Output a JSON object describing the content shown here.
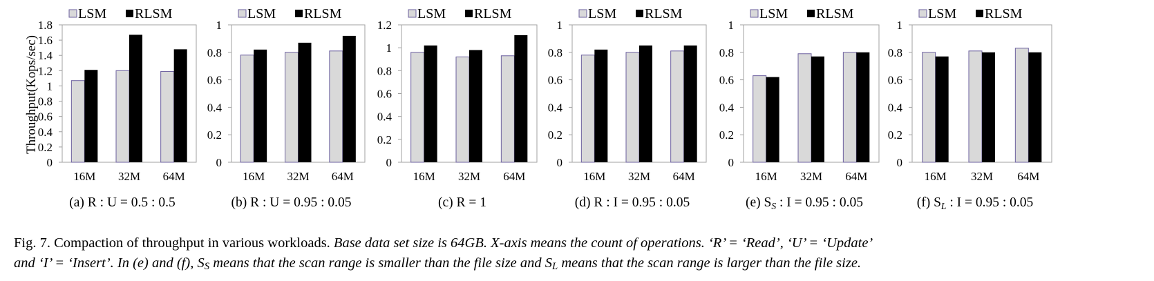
{
  "colors": {
    "lsm": "#d9d9d9",
    "rlsm": "#000000",
    "lsm_edge": "#6b5f9e",
    "axis": "#a0a0a0"
  },
  "legend": {
    "lsm": "LSM",
    "rlsm": "RLSM"
  },
  "y_axis_title": "Throughput(Kops/sec)",
  "chart_data": [
    {
      "type": "bar",
      "categories": [
        "16M",
        "32M",
        "64M"
      ],
      "series": [
        {
          "name": "LSM",
          "values": [
            1.07,
            1.2,
            1.19
          ]
        },
        {
          "name": "RLSM",
          "values": [
            1.21,
            1.67,
            1.48
          ]
        }
      ],
      "ylim": [
        0,
        1.8
      ],
      "yticks": [
        "0",
        "0.2",
        "0.4",
        "0.6",
        "0.8",
        "1",
        "1.2",
        "1.4",
        "1.6",
        "1.8"
      ],
      "ylabel": "Throughput(Kops/sec)",
      "caption": {
        "prefix": "(a) R : U = 0.5 : 0.5",
        "sub": "",
        "suffix": ""
      }
    },
    {
      "type": "bar",
      "categories": [
        "16M",
        "32M",
        "64M"
      ],
      "series": [
        {
          "name": "LSM",
          "values": [
            0.78,
            0.8,
            0.81
          ]
        },
        {
          "name": "RLSM",
          "values": [
            0.82,
            0.87,
            0.92
          ]
        }
      ],
      "ylim": [
        0,
        1
      ],
      "yticks": [
        "0",
        "0.2",
        "0.4",
        "0.6",
        "0.8",
        "1"
      ],
      "caption": {
        "prefix": "(b) R : U = 0.95 : 0.05",
        "sub": "",
        "suffix": ""
      }
    },
    {
      "type": "bar",
      "categories": [
        "16M",
        "32M",
        "64M"
      ],
      "series": [
        {
          "name": "LSM",
          "values": [
            0.96,
            0.92,
            0.93
          ]
        },
        {
          "name": "RLSM",
          "values": [
            1.02,
            0.98,
            1.11
          ]
        }
      ],
      "ylim": [
        0,
        1.2
      ],
      "yticks": [
        "0",
        "0.2",
        "0.4",
        "0.6",
        "0.8",
        "1",
        "1.2"
      ],
      "caption": {
        "prefix": "(c) R = 1",
        "sub": "",
        "suffix": ""
      }
    },
    {
      "type": "bar",
      "categories": [
        "16M",
        "32M",
        "64M"
      ],
      "series": [
        {
          "name": "LSM",
          "values": [
            0.78,
            0.8,
            0.81
          ]
        },
        {
          "name": "RLSM",
          "values": [
            0.82,
            0.85,
            0.85
          ]
        }
      ],
      "ylim": [
        0,
        1
      ],
      "yticks": [
        "0",
        "0.2",
        "0.4",
        "0.6",
        "0.8",
        "1"
      ],
      "caption": {
        "prefix": "(d) R : I = 0.95 : 0.05",
        "sub": "",
        "suffix": ""
      }
    },
    {
      "type": "bar",
      "categories": [
        "16M",
        "32M",
        "64M"
      ],
      "series": [
        {
          "name": "LSM",
          "values": [
            0.63,
            0.79,
            0.8
          ]
        },
        {
          "name": "RLSM",
          "values": [
            0.62,
            0.77,
            0.8
          ]
        }
      ],
      "ylim": [
        0,
        1
      ],
      "yticks": [
        "0",
        "0.2",
        "0.4",
        "0.6",
        "0.8",
        "1"
      ],
      "caption": {
        "prefix": "(e) S",
        "sub": "S",
        "suffix": " : I = 0.95 : 0.05"
      }
    },
    {
      "type": "bar",
      "categories": [
        "16M",
        "32M",
        "64M"
      ],
      "series": [
        {
          "name": "LSM",
          "values": [
            0.8,
            0.81,
            0.83
          ]
        },
        {
          "name": "RLSM",
          "values": [
            0.77,
            0.8,
            0.8
          ]
        }
      ],
      "ylim": [
        0,
        1
      ],
      "yticks": [
        "0",
        "0.2",
        "0.4",
        "0.6",
        "0.8",
        "1"
      ],
      "caption": {
        "prefix": "(f) S",
        "sub": "L",
        "suffix": " : I = 0.95 : 0.05"
      }
    }
  ],
  "caption": {
    "lead": "Fig. 7.   Compaction of throughput in various workloads. ",
    "line1_italic": "Base data set size is 64GB. X-axis means the count of operations. ‘R’ = ‘Read’, ‘U’ = ‘Update’",
    "line2_part1": "and ‘I’ = ‘Insert’. In (e) and (f), S",
    "line2_sub1": "S",
    "line2_part2": " means that the scan range is smaller than the file size and S",
    "line2_sub2": "L",
    "line2_part3": " means that the scan range is larger than the file size."
  }
}
